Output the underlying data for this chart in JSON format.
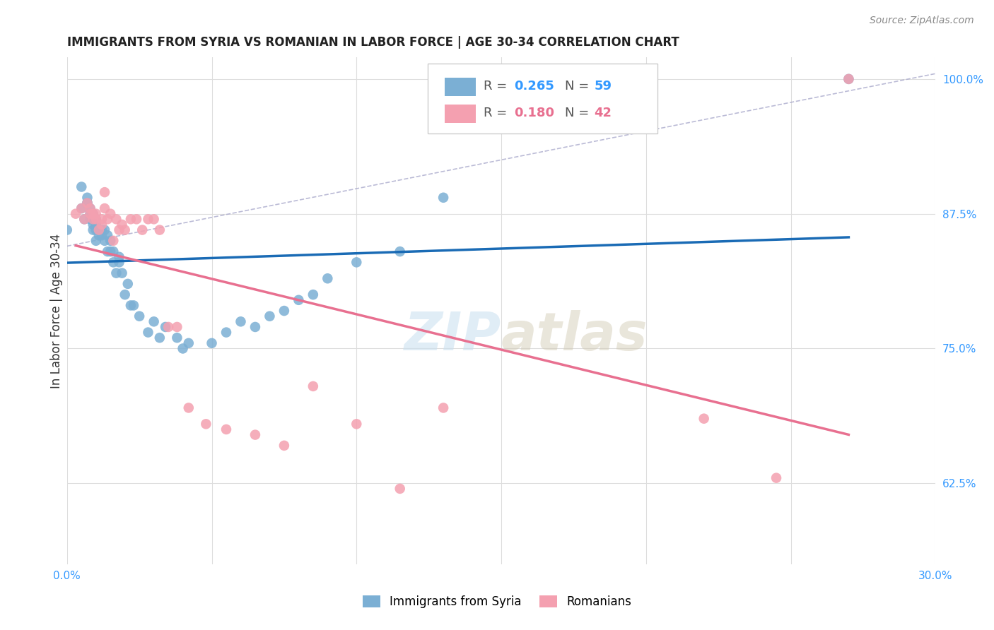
{
  "title": "IMMIGRANTS FROM SYRIA VS ROMANIAN IN LABOR FORCE | AGE 30-34 CORRELATION CHART",
  "source": "Source: ZipAtlas.com",
  "ylabel": "In Labor Force | Age 30-34",
  "xlim": [
    0.0,
    0.3
  ],
  "ylim": [
    0.55,
    1.02
  ],
  "xticks": [
    0.0,
    0.05,
    0.1,
    0.15,
    0.2,
    0.25,
    0.3
  ],
  "ytick_labels_right": [
    "62.5%",
    "75.0%",
    "87.5%",
    "100.0%"
  ],
  "yticks_right": [
    0.625,
    0.75,
    0.875,
    1.0
  ],
  "background_color": "#ffffff",
  "grid_color": "#dddddd",
  "watermark_zip": "ZIP",
  "watermark_atlas": "atlas",
  "syria_color": "#7bafd4",
  "romania_color": "#f4a0b0",
  "syria_R": 0.265,
  "syria_N": 59,
  "romania_R": 0.18,
  "romania_N": 42,
  "syria_line_color": "#1a6bb5",
  "romania_line_color": "#e87090",
  "trend_dash_color": "#aaaacc",
  "syria_points_x": [
    0.0,
    0.005,
    0.005,
    0.006,
    0.007,
    0.007,
    0.007,
    0.008,
    0.008,
    0.008,
    0.009,
    0.009,
    0.009,
    0.009,
    0.01,
    0.01,
    0.01,
    0.01,
    0.011,
    0.011,
    0.012,
    0.012,
    0.013,
    0.013,
    0.014,
    0.014,
    0.015,
    0.015,
    0.016,
    0.016,
    0.017,
    0.018,
    0.018,
    0.019,
    0.02,
    0.021,
    0.022,
    0.023,
    0.025,
    0.028,
    0.03,
    0.032,
    0.034,
    0.038,
    0.04,
    0.042,
    0.05,
    0.055,
    0.06,
    0.065,
    0.07,
    0.075,
    0.08,
    0.085,
    0.09,
    0.1,
    0.115,
    0.13,
    0.27
  ],
  "syria_points_y": [
    0.86,
    0.88,
    0.9,
    0.87,
    0.885,
    0.885,
    0.89,
    0.87,
    0.875,
    0.88,
    0.86,
    0.865,
    0.87,
    0.875,
    0.85,
    0.86,
    0.865,
    0.87,
    0.855,
    0.86,
    0.855,
    0.86,
    0.85,
    0.86,
    0.84,
    0.855,
    0.84,
    0.85,
    0.83,
    0.84,
    0.82,
    0.83,
    0.835,
    0.82,
    0.8,
    0.81,
    0.79,
    0.79,
    0.78,
    0.765,
    0.775,
    0.76,
    0.77,
    0.76,
    0.75,
    0.755,
    0.755,
    0.765,
    0.775,
    0.77,
    0.78,
    0.785,
    0.795,
    0.8,
    0.815,
    0.83,
    0.84,
    0.89,
    1.0
  ],
  "romania_points_x": [
    0.003,
    0.005,
    0.006,
    0.007,
    0.008,
    0.008,
    0.009,
    0.009,
    0.01,
    0.01,
    0.011,
    0.012,
    0.012,
    0.013,
    0.013,
    0.014,
    0.015,
    0.016,
    0.017,
    0.018,
    0.019,
    0.02,
    0.022,
    0.024,
    0.026,
    0.028,
    0.03,
    0.032,
    0.035,
    0.038,
    0.042,
    0.048,
    0.055,
    0.065,
    0.075,
    0.085,
    0.1,
    0.115,
    0.13,
    0.22,
    0.245,
    0.27
  ],
  "romania_points_y": [
    0.875,
    0.88,
    0.87,
    0.885,
    0.875,
    0.88,
    0.87,
    0.875,
    0.87,
    0.875,
    0.86,
    0.865,
    0.87,
    0.88,
    0.895,
    0.87,
    0.875,
    0.85,
    0.87,
    0.86,
    0.865,
    0.86,
    0.87,
    0.87,
    0.86,
    0.87,
    0.87,
    0.86,
    0.77,
    0.77,
    0.695,
    0.68,
    0.675,
    0.67,
    0.66,
    0.715,
    0.68,
    0.62,
    0.695,
    0.685,
    0.63,
    1.0
  ]
}
